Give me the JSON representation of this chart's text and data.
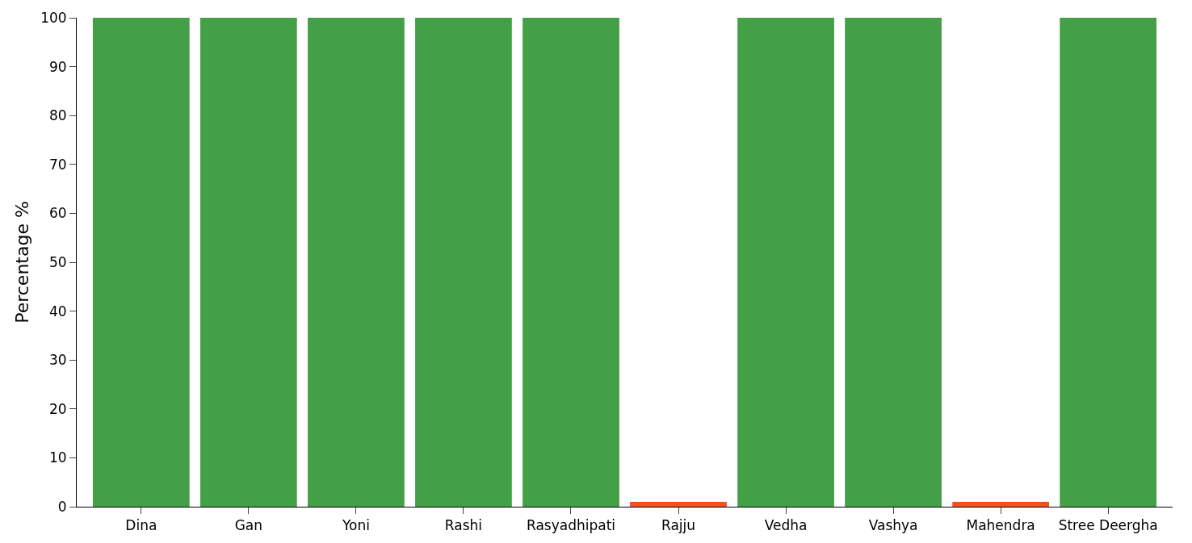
{
  "chart_data": {
    "type": "bar",
    "ylabel": "Percentage %",
    "categories": [
      "Dina",
      "Gan",
      "Yoni",
      "Rashi",
      "Rasyadhipati",
      "Rajju",
      "Vedha",
      "Vashya",
      "Mahendra",
      "Stree Deergha"
    ],
    "values": [
      100,
      100,
      100,
      100,
      100,
      1,
      100,
      100,
      1,
      100
    ],
    "colors": [
      "#43a047",
      "#43a047",
      "#43a047",
      "#43a047",
      "#43a047",
      "#f4511e",
      "#43a047",
      "#43a047",
      "#f4511e",
      "#43a047"
    ],
    "ylim": [
      0,
      100
    ],
    "yticks": [
      0,
      10,
      20,
      30,
      40,
      50,
      60,
      70,
      80,
      90,
      100
    ]
  }
}
